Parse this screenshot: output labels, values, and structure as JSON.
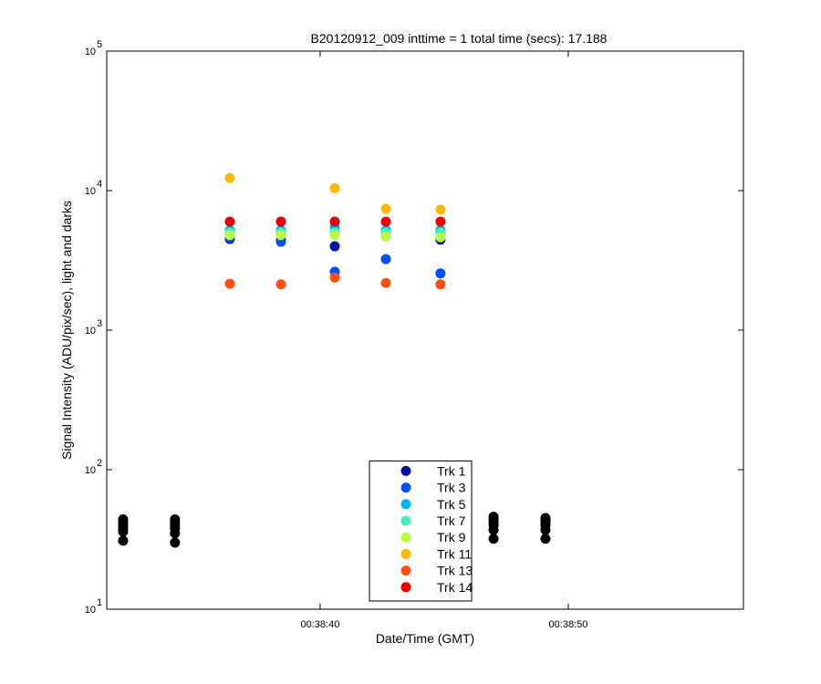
{
  "chart_data": {
    "type": "scatter",
    "title": "B20120912_009 inttime = 1 total time (secs): 17.188",
    "x_label": "Date/Time (GMT)",
    "y_label": "Signal Intensity (ADU/pix/sec), light and darks",
    "yscale": "log",
    "xlim": [
      31.4,
      57.06
    ],
    "ylim": [
      10,
      100000
    ],
    "xticks": [
      {
        "value": 40,
        "label": "00:38:40"
      },
      {
        "value": 50,
        "label": "00:38:50"
      }
    ],
    "yticks": [
      {
        "value": 10,
        "label": "10",
        "exponent": "1"
      },
      {
        "value": 100,
        "label": "10",
        "exponent": "2"
      },
      {
        "value": 1000,
        "label": "10",
        "exponent": "3"
      },
      {
        "value": 10000,
        "label": "10",
        "exponent": "4"
      },
      {
        "value": 100000,
        "label": "10",
        "exponent": "5"
      }
    ],
    "legend_position": "bottom",
    "series": [
      {
        "color": "#000000",
        "x": [
          32.06,
          32.06,
          32.06,
          32.06,
          32.06,
          32.06,
          34.15,
          34.15,
          34.15,
          34.15,
          34.15,
          34.15,
          46.99,
          46.99,
          46.99,
          46.99,
          46.99,
          46.99,
          49.08,
          49.08,
          49.08,
          49.08,
          49.08,
          49.08
        ],
        "values": [
          31,
          36,
          38,
          40,
          42,
          44,
          30,
          35,
          38,
          40,
          42,
          44,
          32,
          37,
          40,
          42,
          44,
          46,
          32,
          37,
          40,
          42,
          44,
          45
        ]
      },
      {
        "name": "Trk 1",
        "color": "#0010a8",
        "x": [
          36.36,
          38.42,
          40.59,
          42.65,
          44.85
        ],
        "values": [
          4500,
          4400,
          3990,
          4700,
          4450
        ]
      },
      {
        "name": "Trk 3",
        "color": "#0050ff",
        "x": [
          36.36,
          38.42,
          40.59,
          42.65,
          44.85
        ],
        "values": [
          4600,
          4300,
          2620,
          3230,
          2550
        ]
      },
      {
        "name": "Trk 5",
        "color": "#00b8f0",
        "x": [
          36.36,
          38.42,
          40.59,
          42.65,
          44.85
        ],
        "values": [
          5200,
          5200,
          5500,
          5200,
          5200
        ]
      },
      {
        "name": "Trk 7",
        "color": "#40f0c0",
        "x": [
          36.36,
          38.42,
          40.59,
          42.65,
          44.85
        ],
        "values": [
          5000,
          5000,
          5000,
          5000,
          5000
        ]
      },
      {
        "name": "Trk 9",
        "color": "#b8ff40",
        "x": [
          36.36,
          38.42,
          40.59,
          42.65,
          44.85
        ],
        "values": [
          4800,
          4800,
          4800,
          4700,
          4630
        ]
      },
      {
        "name": "Trk 11",
        "color": "#ffb800",
        "x": [
          36.36,
          38.42,
          40.59,
          42.65,
          44.85
        ],
        "values": [
          12300,
          6000,
          10400,
          7400,
          7300
        ]
      },
      {
        "name": "Trk 13",
        "color": "#ff5010",
        "x": [
          36.36,
          38.42,
          40.59,
          42.65,
          44.85
        ],
        "values": [
          2150,
          2130,
          2380,
          2180,
          2130
        ]
      },
      {
        "name": "Trk 14",
        "color": "#ee0000",
        "x": [
          36.36,
          38.42,
          40.59,
          42.65,
          44.85
        ],
        "values": [
          5990,
          5990,
          5990,
          5990,
          5990
        ]
      }
    ]
  }
}
